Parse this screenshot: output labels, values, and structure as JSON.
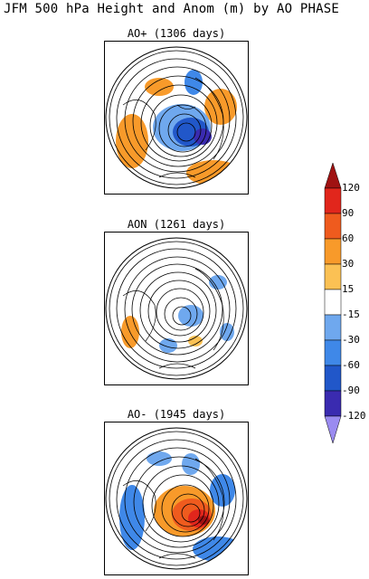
{
  "title": "JFM 500 hPa Height and Anom (m) by AO PHASE",
  "panels": [
    {
      "label": "AO+ (1306 days)"
    },
    {
      "label": "AON (1261 days)"
    },
    {
      "label": "AO- (1945 days)"
    }
  ],
  "colorbar": {
    "levels": [
      "120",
      "90",
      "60",
      "30",
      "15",
      "-15",
      "-30",
      "-60",
      "-90",
      "-120"
    ],
    "colors": {
      "pos_120": "#a01212",
      "pos_90": "#e1261c",
      "pos_60": "#ef5b1e",
      "pos_30": "#f89a2a",
      "pos_15": "#fbc154",
      "neutral": "#ffffff",
      "neg_15": "#6fa8ee",
      "neg_30": "#3f88e8",
      "neg_60": "#2157c9",
      "neg_90": "#3a2bb0",
      "neg_120": "#9a8bf0"
    }
  }
}
